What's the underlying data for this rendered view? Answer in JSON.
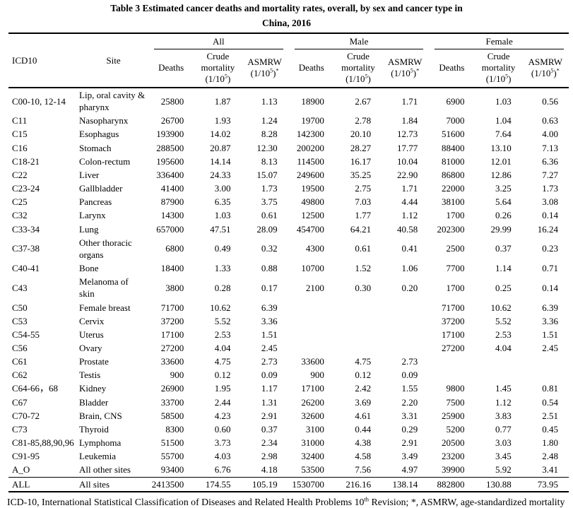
{
  "title": {
    "line1": "Table 3 Estimated cancer deaths and mortality rates, overall, by sex and cancer type in",
    "line2": "China, 2016"
  },
  "table": {
    "col_headers": {
      "icd10": "ICD10",
      "site": "Site"
    },
    "groups": [
      "All",
      "Male",
      "Female"
    ],
    "subheader": {
      "deaths": "Deaths",
      "crude_line1": "Crude",
      "crude_line2": "mortality",
      "rate_pre": "(1/10",
      "rate_sup": "5",
      "rate_post": ")",
      "asmrw": "ASMRW",
      "asmrw_star": "*"
    },
    "rows": [
      [
        "C00-10, 12-14",
        "Lip, oral cavity & pharynx",
        "25800",
        "1.87",
        "1.13",
        "18900",
        "2.67",
        "1.71",
        "6900",
        "1.03",
        "0.56"
      ],
      [
        "C11",
        "Nasopharynx",
        "26700",
        "1.93",
        "1.24",
        "19700",
        "2.78",
        "1.84",
        "7000",
        "1.04",
        "0.63"
      ],
      [
        "C15",
        "Esophagus",
        "193900",
        "14.02",
        "8.28",
        "142300",
        "20.10",
        "12.73",
        "51600",
        "7.64",
        "4.00"
      ],
      [
        "C16",
        "Stomach",
        "288500",
        "20.87",
        "12.30",
        "200200",
        "28.27",
        "17.77",
        "88400",
        "13.10",
        "7.13"
      ],
      [
        "C18-21",
        "Colon-rectum",
        "195600",
        "14.14",
        "8.13",
        "114500",
        "16.17",
        "10.04",
        "81000",
        "12.01",
        "6.36"
      ],
      [
        "C22",
        "Liver",
        "336400",
        "24.33",
        "15.07",
        "249600",
        "35.25",
        "22.90",
        "86800",
        "12.86",
        "7.27"
      ],
      [
        "C23-24",
        "Gallbladder",
        "41400",
        "3.00",
        "1.73",
        "19500",
        "2.75",
        "1.71",
        "22000",
        "3.25",
        "1.73"
      ],
      [
        "C25",
        "Pancreas",
        "87900",
        "6.35",
        "3.75",
        "49800",
        "7.03",
        "4.44",
        "38100",
        "5.64",
        "3.08"
      ],
      [
        "C32",
        "Larynx",
        "14300",
        "1.03",
        "0.61",
        "12500",
        "1.77",
        "1.12",
        "1700",
        "0.26",
        "0.14"
      ],
      [
        "C33-34",
        "Lung",
        "657000",
        "47.51",
        "28.09",
        "454700",
        "64.21",
        "40.58",
        "202300",
        "29.99",
        "16.24"
      ],
      [
        "C37-38",
        "Other thoracic organs",
        "6800",
        "0.49",
        "0.32",
        "4300",
        "0.61",
        "0.41",
        "2500",
        "0.37",
        "0.23"
      ],
      [
        "C40-41",
        "Bone",
        "18400",
        "1.33",
        "0.88",
        "10700",
        "1.52",
        "1.06",
        "7700",
        "1.14",
        "0.71"
      ],
      [
        "C43",
        "Melanoma of skin",
        "3800",
        "0.28",
        "0.17",
        "2100",
        "0.30",
        "0.20",
        "1700",
        "0.25",
        "0.14"
      ],
      [
        "C50",
        "Female breast",
        "71700",
        "10.62",
        "6.39",
        "",
        "",
        "",
        "71700",
        "10.62",
        "6.39"
      ],
      [
        "C53",
        "Cervix",
        "37200",
        "5.52",
        "3.36",
        "",
        "",
        "",
        "37200",
        "5.52",
        "3.36"
      ],
      [
        "C54-55",
        "Uterus",
        "17100",
        "2.53",
        "1.51",
        "",
        "",
        "",
        "17100",
        "2.53",
        "1.51"
      ],
      [
        "C56",
        "Ovary",
        "27200",
        "4.04",
        "2.45",
        "",
        "",
        "",
        "27200",
        "4.04",
        "2.45"
      ],
      [
        "C61",
        "Prostate",
        "33600",
        "4.75",
        "2.73",
        "33600",
        "4.75",
        "2.73",
        "",
        "",
        ""
      ],
      [
        "C62",
        "Testis",
        "900",
        "0.12",
        "0.09",
        "900",
        "0.12",
        "0.09",
        "",
        "",
        ""
      ],
      [
        "C64-66，68",
        "Kidney",
        "26900",
        "1.95",
        "1.17",
        "17100",
        "2.42",
        "1.55",
        "9800",
        "1.45",
        "0.81"
      ],
      [
        "C67",
        "Bladder",
        "33700",
        "2.44",
        "1.31",
        "26200",
        "3.69",
        "2.20",
        "7500",
        "1.12",
        "0.54"
      ],
      [
        "C70-72",
        "Brain, CNS",
        "58500",
        "4.23",
        "2.91",
        "32600",
        "4.61",
        "3.31",
        "25900",
        "3.83",
        "2.51"
      ],
      [
        "C73",
        "Thyroid",
        "8300",
        "0.60",
        "0.37",
        "3100",
        "0.44",
        "0.29",
        "5200",
        "0.77",
        "0.45"
      ],
      [
        "C81-85,88,90,96",
        "Lymphoma",
        "51500",
        "3.73",
        "2.34",
        "31000",
        "4.38",
        "2.91",
        "20500",
        "3.03",
        "1.80"
      ],
      [
        "C91-95",
        "Leukemia",
        "55700",
        "4.03",
        "2.98",
        "32400",
        "4.58",
        "3.49",
        "23200",
        "3.45",
        "2.48"
      ],
      [
        "A_O",
        "All other sites",
        "93400",
        "6.76",
        "4.18",
        "53500",
        "7.56",
        "4.97",
        "39900",
        "5.92",
        "3.41"
      ],
      [
        "ALL",
        "All sites",
        "2413500",
        "174.55",
        "105.19",
        "1530700",
        "216.16",
        "138.14",
        "882800",
        "130.88",
        "73.95"
      ]
    ]
  },
  "footnote": {
    "part1": "ICD-10, International Statistical Classification of Diseases and Related Health Problems 10",
    "sup": "th",
    "part2": " Revision; *, ASMRW, age-standardized mortality rate by world standard population (Segi’s population); CNS, central nervous system."
  }
}
